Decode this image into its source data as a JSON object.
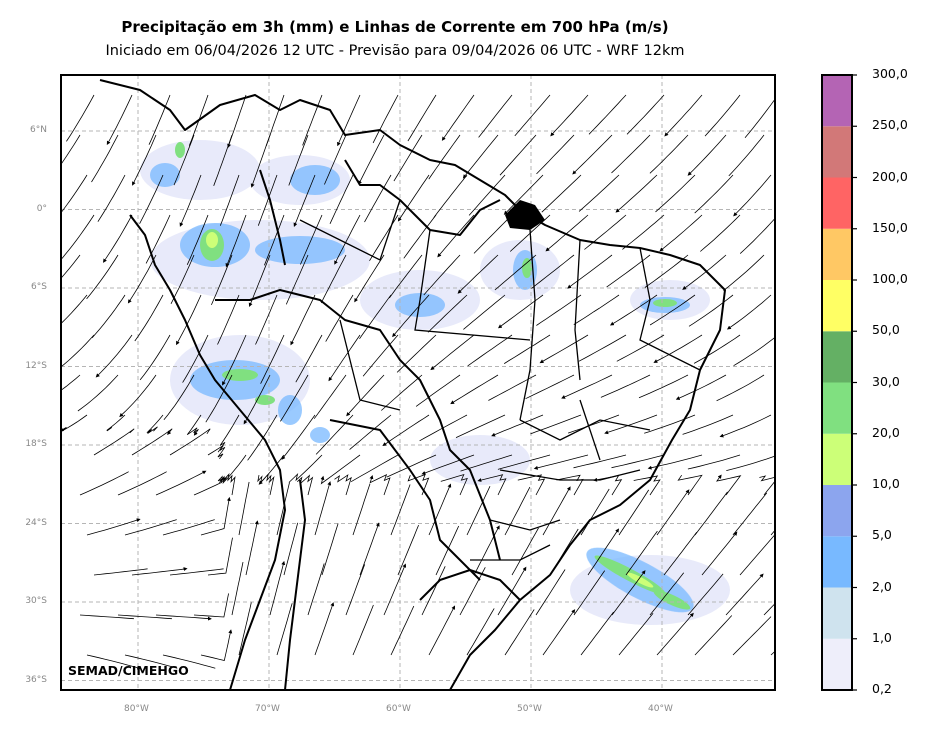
{
  "title": {
    "line1": "Precipitação em 3h (mm) e Linhas de Corrente em 700 hPa (m/s)",
    "line2": "Iniciado em 06/04/2026 12 UTC - Previsão para 09/04/2026 06 UTC - WRF 12km"
  },
  "credit": "SEMAD/CIMEHGO",
  "axes": {
    "lat_ticks": [
      "6°N",
      "0°",
      "6°S",
      "12°S",
      "18°S",
      "24°S",
      "30°S",
      "36°S"
    ],
    "lon_ticks": [
      "80°W",
      "70°W",
      "60°W",
      "50°W",
      "40°W"
    ],
    "gridlines": true,
    "grid_color": "#b5b5b5"
  },
  "colorbar": {
    "levels": [
      "0,2",
      "1,0",
      "2,0",
      "5,0",
      "10,0",
      "20,0",
      "30,0",
      "50,0",
      "100,0",
      "150,0",
      "200,0",
      "250,0",
      "300,0"
    ],
    "colors": [
      "#eeeefa",
      "#cfe3ee",
      "#78b9ff",
      "#8ca5ee",
      "#ccff78",
      "#80e080",
      "#64b064",
      "#ffff64",
      "#ffc864",
      "#ff6464",
      "#d27878",
      "#b464b4"
    ]
  },
  "legend_placement": "right"
}
